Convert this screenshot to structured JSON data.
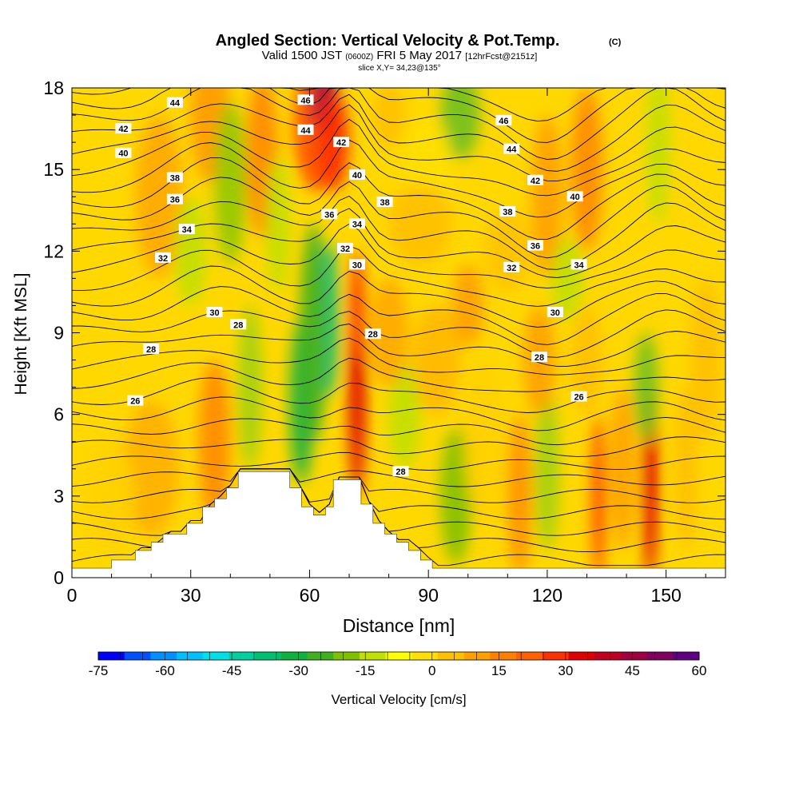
{
  "titles": {
    "main": "Angled Section: Vertical Velocity & Pot.Temp.",
    "main_mark": "(C)",
    "valid_prefix": "Valid 1500 JST",
    "valid_small1": "(0600Z)",
    "valid_mid": "FRI 5 May 2017",
    "valid_small2": "[12hrFcst@2151z]",
    "slice": "slice X,Y= 34,23@135°"
  },
  "chart_data": {
    "type": "heatmap",
    "xlabel": "Distance [nm]",
    "ylabel": "Height [Kft MSL]",
    "xlim": [
      0,
      165
    ],
    "ylim": [
      0,
      18
    ],
    "x_ticks": [
      0,
      30,
      60,
      90,
      120,
      150
    ],
    "y_ticks": [
      0,
      3,
      6,
      9,
      12,
      15,
      18
    ],
    "colorbar": {
      "label": "Vertical Velocity [cm/s]",
      "min": -75,
      "max": 60,
      "step": 5,
      "tick_labels": [
        -75,
        -60,
        -45,
        -30,
        -15,
        0,
        15,
        30,
        45,
        60
      ],
      "colors": [
        "#0000ff",
        "#0050ff",
        "#0090ff",
        "#00c0ff",
        "#00e0e8",
        "#00d0a0",
        "#00c070",
        "#10b040",
        "#40b020",
        "#80c000",
        "#c0e000",
        "#ffff00",
        "#ffe000",
        "#ffc000",
        "#ffa000",
        "#ff8000",
        "#ff6000",
        "#ff3000",
        "#e00000",
        "#c00020",
        "#a00040",
        "#800060",
        "#600080"
      ]
    },
    "contour_field": "Potential Temperature",
    "contour_labels": [
      {
        "x": 26,
        "y": 17.45,
        "text": "44"
      },
      {
        "x": 59,
        "y": 17.55,
        "text": "46"
      },
      {
        "x": 13,
        "y": 16.5,
        "text": "42"
      },
      {
        "x": 59,
        "y": 16.45,
        "text": "44"
      },
      {
        "x": 109,
        "y": 16.8,
        "text": "46"
      },
      {
        "x": 13,
        "y": 15.6,
        "text": "40"
      },
      {
        "x": 68,
        "y": 16.0,
        "text": "42"
      },
      {
        "x": 111,
        "y": 15.75,
        "text": "44"
      },
      {
        "x": 26,
        "y": 14.7,
        "text": "38"
      },
      {
        "x": 72,
        "y": 14.8,
        "text": "40"
      },
      {
        "x": 117,
        "y": 14.6,
        "text": "42"
      },
      {
        "x": 26,
        "y": 13.9,
        "text": "36"
      },
      {
        "x": 79,
        "y": 13.8,
        "text": "38"
      },
      {
        "x": 127,
        "y": 14.0,
        "text": "40"
      },
      {
        "x": 65,
        "y": 13.35,
        "text": "36"
      },
      {
        "x": 110,
        "y": 13.45,
        "text": "38"
      },
      {
        "x": 29,
        "y": 12.8,
        "text": "34"
      },
      {
        "x": 72,
        "y": 13.0,
        "text": "34"
      },
      {
        "x": 117,
        "y": 12.2,
        "text": "36"
      },
      {
        "x": 23,
        "y": 11.75,
        "text": "32"
      },
      {
        "x": 69,
        "y": 12.1,
        "text": "32"
      },
      {
        "x": 111,
        "y": 11.4,
        "text": "32"
      },
      {
        "x": 128,
        "y": 11.5,
        "text": "34"
      },
      {
        "x": 72,
        "y": 11.5,
        "text": "30"
      },
      {
        "x": 36,
        "y": 9.75,
        "text": "30"
      },
      {
        "x": 122,
        "y": 9.75,
        "text": "30"
      },
      {
        "x": 42,
        "y": 9.3,
        "text": "28"
      },
      {
        "x": 76,
        "y": 8.95,
        "text": "28"
      },
      {
        "x": 20,
        "y": 8.4,
        "text": "28"
      },
      {
        "x": 118,
        "y": 8.1,
        "text": "28"
      },
      {
        "x": 16,
        "y": 6.5,
        "text": "26"
      },
      {
        "x": 128,
        "y": 6.65,
        "text": "26"
      },
      {
        "x": 83,
        "y": 3.9,
        "text": "28"
      }
    ],
    "terrain": [
      {
        "x": 0,
        "h": 0.35
      },
      {
        "x": 10,
        "h": 0.65
      },
      {
        "x": 16,
        "h": 1.0
      },
      {
        "x": 20,
        "h": 1.3
      },
      {
        "x": 23,
        "h": 1.6
      },
      {
        "x": 29,
        "h": 2.0
      },
      {
        "x": 33,
        "h": 2.6
      },
      {
        "x": 36,
        "h": 2.9
      },
      {
        "x": 39,
        "h": 3.3
      },
      {
        "x": 42,
        "h": 3.9
      },
      {
        "x": 52,
        "h": 3.9
      },
      {
        "x": 55,
        "h": 3.3
      },
      {
        "x": 58,
        "h": 2.6
      },
      {
        "x": 61,
        "h": 2.3
      },
      {
        "x": 64,
        "h": 2.6
      },
      {
        "x": 66,
        "h": 3.6
      },
      {
        "x": 70,
        "h": 3.6
      },
      {
        "x": 73,
        "h": 2.7
      },
      {
        "x": 76,
        "h": 2.0
      },
      {
        "x": 79,
        "h": 1.6
      },
      {
        "x": 82,
        "h": 1.3
      },
      {
        "x": 85,
        "h": 1.0
      },
      {
        "x": 88,
        "h": 0.65
      },
      {
        "x": 91,
        "h": 0.35
      },
      {
        "x": 165,
        "h": 0.35
      }
    ]
  }
}
